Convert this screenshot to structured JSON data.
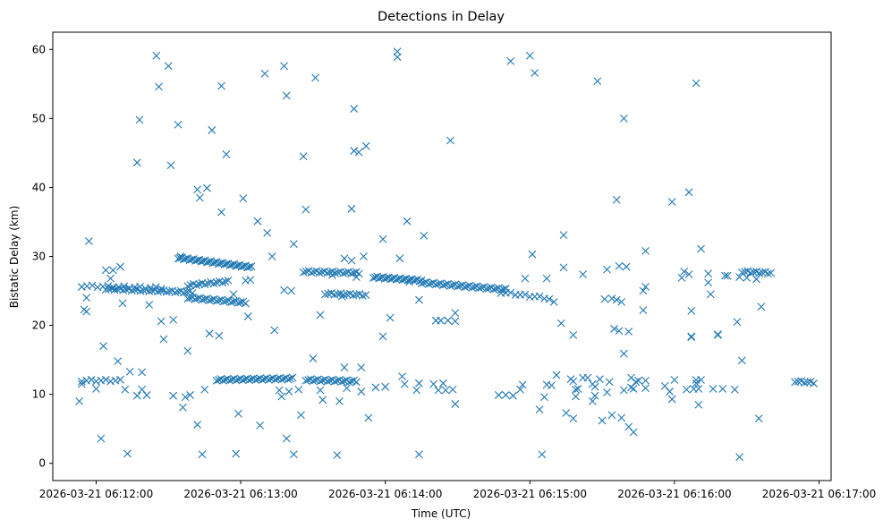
{
  "chart_data": {
    "type": "scatter",
    "title": "Detections in Delay",
    "xlabel": "Time (UTC)",
    "ylabel": "Bistatic Delay (km)",
    "marker": "x",
    "color": "#1f77b4",
    "x_unit": "seconds since 2026-03-21 06:12:00 UTC",
    "xlim": [
      -18,
      305
    ],
    "ylim": [
      -2.5,
      62.5
    ],
    "x_ticks": [
      0,
      60,
      120,
      180,
      240,
      300
    ],
    "x_tick_labels": [
      "2026-03-21 06:12:00",
      "2026-03-21 06:13:00",
      "2026-03-21 06:14:00",
      "2026-03-21 06:15:00",
      "2026-03-21 06:16:00",
      "2026-03-21 06:17:00"
    ],
    "y_ticks": [
      0,
      10,
      20,
      30,
      40,
      50,
      60
    ],
    "y_tick_labels": [
      "0",
      "10",
      "20",
      "30",
      "40",
      "50",
      "60"
    ],
    "bands": [
      {
        "name": "track-a",
        "t0": -6,
        "t1": 28,
        "d0": 25.7,
        "d1": 25.4,
        "step": 2.2
      },
      {
        "name": "track-b",
        "t0": 4,
        "t1": 40,
        "d0": 25.3,
        "d1": 24.8,
        "step": 1.2
      },
      {
        "name": "track-c",
        "t0": 34,
        "t1": 65,
        "d0": 29.8,
        "d1": 28.4,
        "step": 0.8
      },
      {
        "name": "track-d",
        "t0": 38,
        "t1": 55,
        "d0": 25.8,
        "d1": 26.4,
        "step": 1.2
      },
      {
        "name": "track-e",
        "t0": 38,
        "t1": 62,
        "d0": 24.0,
        "d1": 23.3,
        "step": 1.0
      },
      {
        "name": "track-f",
        "t0": 86,
        "t1": 110,
        "d0": 27.8,
        "d1": 27.6,
        "step": 1.1
      },
      {
        "name": "track-g",
        "t0": 95,
        "t1": 112,
        "d0": 24.6,
        "d1": 24.4,
        "step": 1.3
      },
      {
        "name": "track-h",
        "t0": 115,
        "t1": 135,
        "d0": 27.0,
        "d1": 26.5,
        "step": 0.8
      },
      {
        "name": "track-i",
        "t0": 135,
        "t1": 170,
        "d0": 26.2,
        "d1": 25.2,
        "step": 1.0
      },
      {
        "name": "track-j",
        "t0": 168,
        "t1": 186,
        "d0": 24.8,
        "d1": 24.0,
        "step": 2.0
      },
      {
        "name": "track-k",
        "t0": 268,
        "t1": 280,
        "d0": 27.8,
        "d1": 27.6,
        "step": 1.2
      },
      {
        "name": "track-l",
        "t0": -6,
        "t1": 10,
        "d0": 12.0,
        "d1": 12.0,
        "step": 2.0
      },
      {
        "name": "track-m",
        "t0": 50,
        "t1": 82,
        "d0": 12.1,
        "d1": 12.3,
        "step": 0.9
      },
      {
        "name": "track-n",
        "t0": 87,
        "t1": 108,
        "d0": 12.1,
        "d1": 11.9,
        "step": 1.0
      },
      {
        "name": "track-o",
        "t0": 290,
        "t1": 298,
        "d0": 11.9,
        "d1": 11.7,
        "step": 1.3
      }
    ],
    "points": [
      [
        -7,
        9.0
      ],
      [
        -6,
        11.5
      ],
      [
        -5,
        22.3
      ],
      [
        -4,
        22.0
      ],
      [
        -3,
        32.2
      ],
      [
        -4,
        24.0
      ],
      [
        0,
        10.8
      ],
      [
        2,
        3.6
      ],
      [
        3,
        17.0
      ],
      [
        4,
        28.0
      ],
      [
        6,
        26.8
      ],
      [
        7,
        28.0
      ],
      [
        9,
        14.8
      ],
      [
        10,
        28.5
      ],
      [
        11,
        23.2
      ],
      [
        12,
        10.7
      ],
      [
        13,
        1.4
      ],
      [
        14,
        13.3
      ],
      [
        17,
        43.6
      ],
      [
        17,
        9.8
      ],
      [
        18,
        49.8
      ],
      [
        19,
        13.2
      ],
      [
        19,
        10.7
      ],
      [
        21,
        9.9
      ],
      [
        22,
        23.0
      ],
      [
        25,
        59.1
      ],
      [
        26,
        54.6
      ],
      [
        27,
        20.6
      ],
      [
        28,
        18.0
      ],
      [
        30,
        57.6
      ],
      [
        31,
        43.2
      ],
      [
        32,
        9.8
      ],
      [
        32,
        20.8
      ],
      [
        34,
        49.1
      ],
      [
        35,
        30.0
      ],
      [
        36,
        8.1
      ],
      [
        37,
        9.6
      ],
      [
        38,
        16.3
      ],
      [
        39,
        9.9
      ],
      [
        42,
        5.6
      ],
      [
        42,
        39.7
      ],
      [
        43,
        38.5
      ],
      [
        44,
        1.3
      ],
      [
        45,
        10.7
      ],
      [
        46,
        39.9
      ],
      [
        47,
        18.8
      ],
      [
        48,
        48.3
      ],
      [
        51,
        18.5
      ],
      [
        52,
        36.4
      ],
      [
        52,
        54.7
      ],
      [
        54,
        44.8
      ],
      [
        57,
        24.5
      ],
      [
        58,
        1.4
      ],
      [
        59,
        7.2
      ],
      [
        61,
        38.4
      ],
      [
        62,
        26.5
      ],
      [
        63,
        21.3
      ],
      [
        64,
        26.6
      ],
      [
        67,
        35.1
      ],
      [
        68,
        5.5
      ],
      [
        70,
        56.5
      ],
      [
        71,
        33.4
      ],
      [
        73,
        30.0
      ],
      [
        74,
        19.3
      ],
      [
        76,
        10.6
      ],
      [
        77,
        9.7
      ],
      [
        78,
        57.6
      ],
      [
        78,
        25.1
      ],
      [
        79,
        53.3
      ],
      [
        79,
        3.6
      ],
      [
        80,
        10.4
      ],
      [
        81,
        25.0
      ],
      [
        82,
        31.8
      ],
      [
        82,
        1.3
      ],
      [
        84,
        10.7
      ],
      [
        85,
        7.0
      ],
      [
        86,
        44.5
      ],
      [
        87,
        36.8
      ],
      [
        90,
        15.2
      ],
      [
        91,
        55.9
      ],
      [
        93,
        10.6
      ],
      [
        93,
        21.5
      ],
      [
        94,
        9.2
      ],
      [
        98,
        27.3
      ],
      [
        100,
        1.2
      ],
      [
        101,
        9.0
      ],
      [
        102,
        24.2
      ],
      [
        103,
        29.7
      ],
      [
        103,
        13.9
      ],
      [
        104,
        10.9
      ],
      [
        106,
        36.9
      ],
      [
        106,
        29.4
      ],
      [
        107,
        51.4
      ],
      [
        107,
        45.3
      ],
      [
        108,
        27.0
      ],
      [
        109,
        45.1
      ],
      [
        110,
        10.4
      ],
      [
        110,
        13.9
      ],
      [
        111,
        30.0
      ],
      [
        112,
        46.0
      ],
      [
        113,
        6.6
      ],
      [
        116,
        11.0
      ],
      [
        119,
        32.5
      ],
      [
        119,
        18.4
      ],
      [
        120,
        11.1
      ],
      [
        122,
        21.1
      ],
      [
        125,
        58.9
      ],
      [
        125,
        59.7
      ],
      [
        126,
        29.7
      ],
      [
        127,
        12.6
      ],
      [
        128,
        11.5
      ],
      [
        129,
        35.1
      ],
      [
        130,
        26.3
      ],
      [
        133,
        10.6
      ],
      [
        134,
        23.7
      ],
      [
        134,
        11.6
      ],
      [
        134,
        1.3
      ],
      [
        136,
        33.0
      ],
      [
        140,
        11.5
      ],
      [
        141,
        20.7
      ],
      [
        142,
        10.6
      ],
      [
        143,
        20.7
      ],
      [
        144,
        11.6
      ],
      [
        145,
        10.6
      ],
      [
        146,
        20.7
      ],
      [
        147,
        46.8
      ],
      [
        148,
        10.7
      ],
      [
        149,
        21.8
      ],
      [
        149,
        20.6
      ],
      [
        149,
        8.6
      ],
      [
        167,
        9.9
      ],
      [
        170,
        9.9
      ],
      [
        172,
        58.3
      ],
      [
        173,
        9.8
      ],
      [
        176,
        10.7
      ],
      [
        177,
        11.4
      ],
      [
        178,
        26.8
      ],
      [
        180,
        59.1
      ],
      [
        181,
        30.3
      ],
      [
        182,
        56.6
      ],
      [
        184,
        7.8
      ],
      [
        185,
        1.3
      ],
      [
        186,
        9.6
      ],
      [
        187,
        26.8
      ],
      [
        187,
        11.4
      ],
      [
        188,
        23.8
      ],
      [
        189,
        11.3
      ],
      [
        190,
        23.4
      ],
      [
        191,
        12.8
      ],
      [
        193,
        20.3
      ],
      [
        194,
        28.4
      ],
      [
        194,
        33.1
      ],
      [
        195,
        7.3
      ],
      [
        197,
        12.2
      ],
      [
        198,
        11.9
      ],
      [
        198,
        6.5
      ],
      [
        198,
        18.6
      ],
      [
        199,
        10.7
      ],
      [
        199,
        9.7
      ],
      [
        200,
        10.8
      ],
      [
        202,
        12.4
      ],
      [
        202,
        27.4
      ],
      [
        204,
        12.4
      ],
      [
        206,
        9.0
      ],
      [
        206,
        11.5
      ],
      [
        207,
        9.8
      ],
      [
        207,
        11.1
      ],
      [
        208,
        55.4
      ],
      [
        209,
        12.2
      ],
      [
        210,
        6.2
      ],
      [
        211,
        23.8
      ],
      [
        212,
        10.3
      ],
      [
        212,
        28.1
      ],
      [
        213,
        11.8
      ],
      [
        214,
        7.0
      ],
      [
        214,
        23.9
      ],
      [
        215,
        19.5
      ],
      [
        216,
        23.7
      ],
      [
        216,
        38.2
      ],
      [
        217,
        19.2
      ],
      [
        217,
        28.6
      ],
      [
        218,
        23.4
      ],
      [
        218,
        6.6
      ],
      [
        219,
        15.9
      ],
      [
        219,
        10.6
      ],
      [
        219,
        50.0
      ],
      [
        220,
        28.5
      ],
      [
        221,
        19.1
      ],
      [
        221,
        5.3
      ],
      [
        222,
        12.4
      ],
      [
        222,
        11.0
      ],
      [
        223,
        10.8
      ],
      [
        223,
        4.5
      ],
      [
        224,
        11.8
      ],
      [
        225,
        12.0
      ],
      [
        227,
        22.2
      ],
      [
        227,
        25.0
      ],
      [
        228,
        25.6
      ],
      [
        228,
        30.8
      ],
      [
        228,
        10.9
      ],
      [
        228,
        12.0
      ],
      [
        236,
        11.2
      ],
      [
        238,
        10.4
      ],
      [
        239,
        37.9
      ],
      [
        239,
        9.3
      ],
      [
        240,
        12.1
      ],
      [
        243,
        26.9
      ],
      [
        244,
        27.8
      ],
      [
        245,
        10.7
      ],
      [
        246,
        39.3
      ],
      [
        246,
        27.4
      ],
      [
        247,
        18.3
      ],
      [
        247,
        18.4
      ],
      [
        247,
        22.1
      ],
      [
        248,
        10.8
      ],
      [
        249,
        55.1
      ],
      [
        249,
        11.6
      ],
      [
        249,
        12.1
      ],
      [
        250,
        8.5
      ],
      [
        250,
        10.8
      ],
      [
        251,
        12.1
      ],
      [
        251,
        31.1
      ],
      [
        254,
        27.5
      ],
      [
        254,
        26.2
      ],
      [
        255,
        24.5
      ],
      [
        256,
        10.8
      ],
      [
        258,
        18.7
      ],
      [
        258,
        18.6
      ],
      [
        260,
        10.8
      ],
      [
        261,
        27.2
      ],
      [
        262,
        27.2
      ],
      [
        265,
        10.7
      ],
      [
        266,
        20.5
      ],
      [
        267,
        0.9
      ],
      [
        267,
        27.0
      ],
      [
        268,
        14.9
      ],
      [
        270,
        26.9
      ],
      [
        274,
        26.7
      ],
      [
        275,
        6.5
      ],
      [
        276,
        22.7
      ]
    ]
  }
}
